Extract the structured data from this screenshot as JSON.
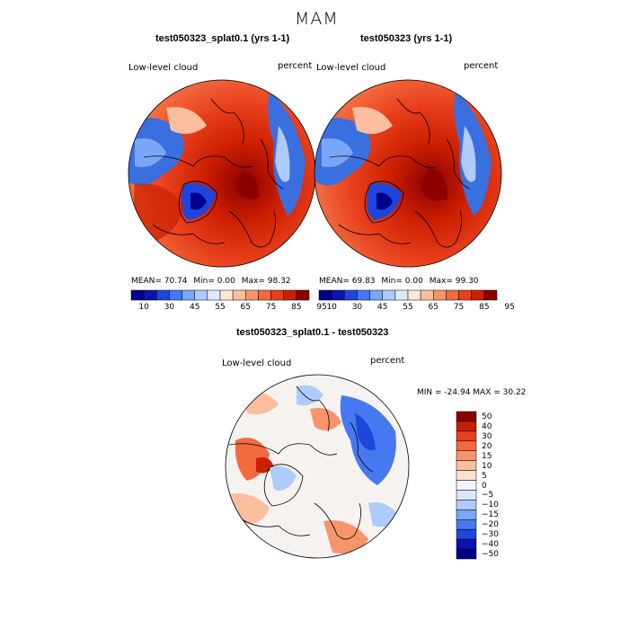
{
  "season": "MAM",
  "colors": {
    "abs_scale": [
      "#00008c",
      "#0a14b4",
      "#1e46dc",
      "#4678f0",
      "#7aa6f7",
      "#aecbfb",
      "#dceafd",
      "#fde6d8",
      "#fbbfa0",
      "#f8946a",
      "#f26a3e",
      "#e8401c",
      "#cc1f00",
      "#8c0000"
    ],
    "diff_scale": [
      "#8c0000",
      "#c81e00",
      "#e6401a",
      "#f26a3e",
      "#f8946a",
      "#fbbfa0",
      "#fde2d0",
      "#f3f4f6",
      "#dbe8fc",
      "#aecbfb",
      "#7aa6f7",
      "#4678f0",
      "#1e46dc",
      "#0a14b4",
      "#00008c"
    ],
    "ocean_red": "#d83a12",
    "land_blue": "#3a6fe0",
    "coast": "#000000"
  },
  "chart_data": [
    {
      "type": "heatmap",
      "projection": "north-polar-stereographic",
      "title": "test050323_splat0.1 (yrs 1-1)",
      "variable": "Low-level cloud",
      "units": "percent",
      "mean_label": "MEAN=",
      "mean": "70.74",
      "min_label": "Min=",
      "min": "0.00",
      "max_label": "Max=",
      "max": "98.32",
      "colorbar_levels": [
        10,
        30,
        45,
        55,
        65,
        75,
        85,
        95
      ],
      "colorbar_labels": [
        "10",
        "30",
        "45",
        "55",
        "65",
        "75",
        "85",
        "95"
      ]
    },
    {
      "type": "heatmap",
      "projection": "north-polar-stereographic",
      "title": "test050323 (yrs 1-1)",
      "variable": "Low-level cloud",
      "units": "percent",
      "mean_label": "MEAN=",
      "mean": "69.83",
      "min_label": "Min=",
      "min": "0.00",
      "max_label": "Max=",
      "max": "99.30",
      "colorbar_levels": [
        10,
        30,
        45,
        55,
        65,
        75,
        85,
        95
      ],
      "colorbar_labels": [
        "10",
        "30",
        "45",
        "55",
        "65",
        "75",
        "85",
        "95"
      ]
    },
    {
      "type": "heatmap",
      "projection": "north-polar-stereographic",
      "title": "test050323_splat0.1 - test050323",
      "variable": "Low-level cloud",
      "units": "percent",
      "minmax_text": "MIN = -24.94 MAX =  30.22",
      "min": -24.94,
      "max": 30.22,
      "colorbar_levels": [
        50,
        40,
        30,
        20,
        15,
        10,
        5,
        0,
        -5,
        -10,
        -15,
        -20,
        -30,
        -40,
        -50
      ],
      "colorbar_labels": [
        "50",
        "40",
        "30",
        "20",
        "15",
        "10",
        "5",
        "0",
        "−5",
        "−10",
        "−15",
        "−20",
        "−30",
        "−40",
        "−50"
      ]
    }
  ]
}
